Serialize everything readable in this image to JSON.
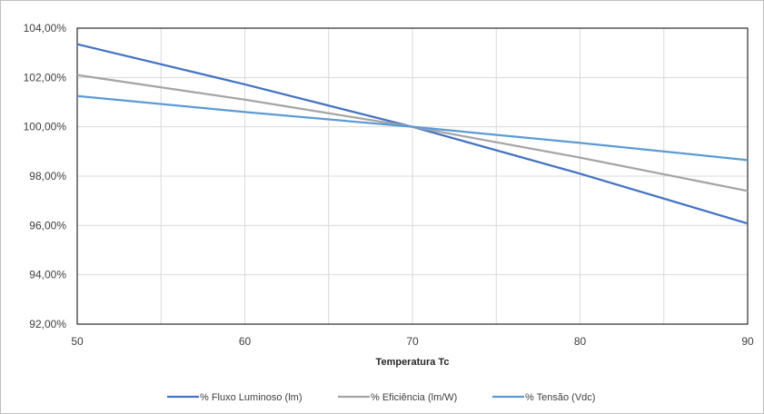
{
  "chart_data": {
    "type": "line",
    "title": "",
    "xlabel": "Temperatura Tc",
    "ylabel": "",
    "x": [
      50,
      60,
      70,
      80,
      90
    ],
    "xlim": [
      50,
      90
    ],
    "ylim": [
      92,
      104
    ],
    "x_ticks": [
      "50",
      "60",
      "70",
      "80",
      "90"
    ],
    "x_ticks_values": [
      50,
      60,
      70,
      80,
      90
    ],
    "y_ticks": [
      "92,00%",
      "94,00%",
      "96,00%",
      "98,00%",
      "100,00%",
      "102,00%",
      "104,00%"
    ],
    "y_ticks_values": [
      92,
      94,
      96,
      98,
      100,
      102,
      104
    ],
    "grid": true,
    "legend_position": "bottom",
    "series": [
      {
        "name": "% Fluxo Luminoso (lm)",
        "color": "#4472c4",
        "values": [
          103.35,
          101.72,
          100.0,
          98.1,
          96.08
        ]
      },
      {
        "name": "% Eficiência (lm/W)",
        "color": "#a5a5a5",
        "values": [
          102.1,
          101.1,
          100.0,
          98.75,
          97.4
        ]
      },
      {
        "name": "% Tensão (Vdc)",
        "color": "#5b9bd5",
        "values": [
          101.25,
          100.6,
          100.0,
          99.35,
          98.65
        ]
      }
    ]
  }
}
